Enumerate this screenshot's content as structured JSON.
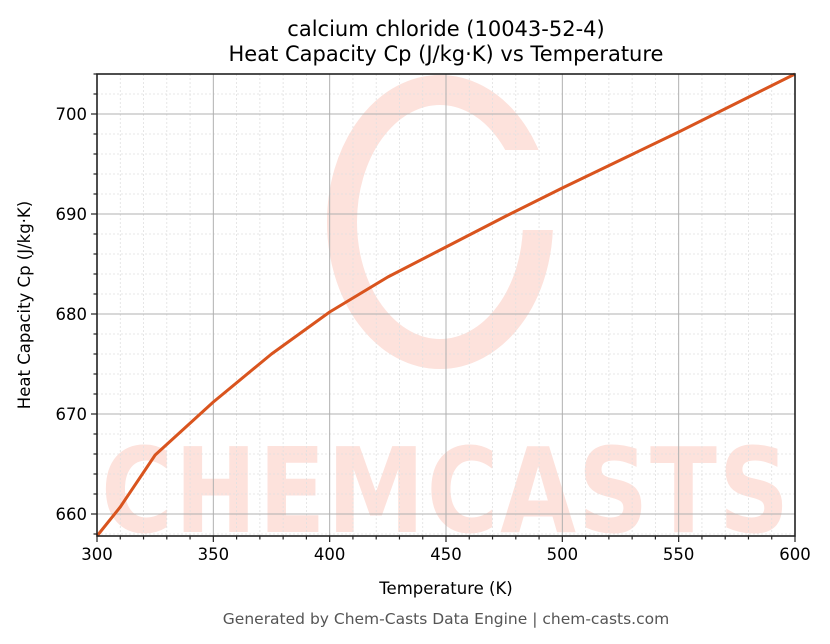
{
  "title_line1": "calcium chloride (10043-52-4)",
  "title_line2": "Heat Capacity Cp (J/kg·K) vs Temperature",
  "footer": "Generated by Chem-Casts Data Engine | chem-casts.com",
  "watermark": "CHEMCASTS",
  "colors": {
    "line": "#d9541e",
    "watermark": "#fde2dc",
    "major_grid": "#b0b0b0",
    "minor_grid": "#e0e0e0",
    "axis": "#222222"
  },
  "chart_data": {
    "type": "line",
    "title": "calcium chloride (10043-52-4)\nHeat Capacity Cp (J/kg·K) vs Temperature",
    "xlabel": "Temperature (K)",
    "ylabel": "Heat Capacity Cp (J/kg·K)",
    "xlim": [
      300,
      600
    ],
    "ylim": [
      657.8,
      704.0
    ],
    "xticks": [
      300,
      350,
      400,
      450,
      500,
      550,
      600
    ],
    "yticks": [
      660,
      670,
      680,
      690,
      700
    ],
    "x_minor_step": 10,
    "y_minor_step": 2,
    "grid": true,
    "legend": null,
    "series": [
      {
        "name": "Heat Capacity Cp",
        "x": [
          300,
          310,
          325,
          350,
          375,
          400,
          425,
          450,
          475,
          500,
          525,
          550,
          575,
          600
        ],
        "values": [
          657.8,
          660.7,
          665.9,
          671.2,
          676.0,
          680.2,
          683.7,
          686.7,
          689.7,
          692.6,
          695.4,
          698.2,
          701.1,
          704.0
        ]
      }
    ]
  }
}
